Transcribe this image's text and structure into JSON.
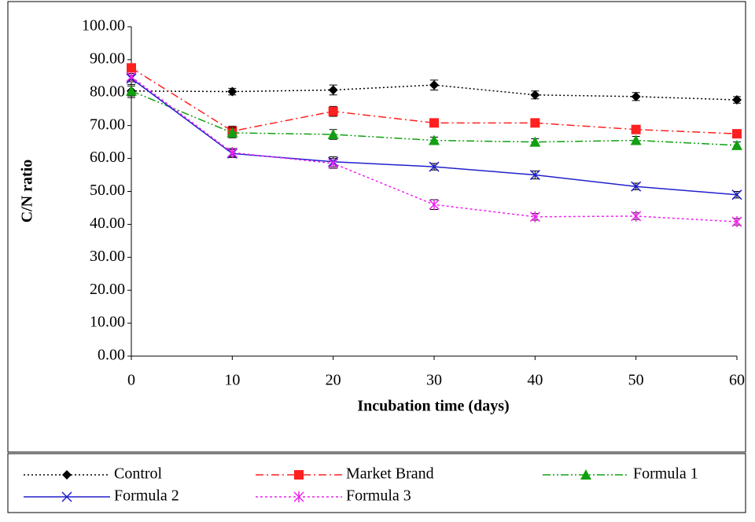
{
  "chart_data": {
    "type": "line",
    "xlabel": "Incubation time (days)",
    "ylabel": "C/N ratio",
    "x": [
      0,
      10,
      20,
      30,
      40,
      50,
      60
    ],
    "xlim": [
      0,
      60
    ],
    "xticks": [
      0,
      10,
      20,
      30,
      40,
      50,
      60
    ],
    "ylim": [
      0,
      100
    ],
    "yticks": [
      {
        "value": 0,
        "label": "0.00"
      },
      {
        "value": 10,
        "label": "10.00"
      },
      {
        "value": 20,
        "label": "20.00"
      },
      {
        "value": 30,
        "label": "30.00"
      },
      {
        "value": 40,
        "label": "40.00"
      },
      {
        "value": 50,
        "label": "50.00"
      },
      {
        "value": 60,
        "label": "60.00"
      },
      {
        "value": 70,
        "label": "70.00"
      },
      {
        "value": 80,
        "label": "80.00"
      },
      {
        "value": 90,
        "label": "90.00"
      },
      {
        "value": 100,
        "label": "100.00"
      }
    ],
    "legend": "bottom",
    "series": [
      {
        "name": "Control",
        "color": "#000000",
        "dash": "2,3",
        "marker": "diamond",
        "values": [
          80.5,
          80.3,
          80.8,
          82.3,
          79.3,
          78.8,
          77.8
        ],
        "errors": [
          1.5,
          1.0,
          1.5,
          1.5,
          1.2,
          1.2,
          1.0
        ]
      },
      {
        "name": "Market Brand",
        "color": "#ff2020",
        "dash": "10,4,2,4",
        "marker": "square",
        "values": [
          87.5,
          68.3,
          74.3,
          70.8,
          70.8,
          68.8,
          67.5
        ],
        "errors": [
          1.0,
          1.5,
          1.5,
          1.2,
          1.2,
          1.0,
          1.0
        ]
      },
      {
        "name": "Formula 1",
        "color": "#11a011",
        "dash": "10,3,2,3,2,3",
        "marker": "triangle",
        "values": [
          80.5,
          67.8,
          67.3,
          65.5,
          65.0,
          65.5,
          64.0
        ],
        "errors": [
          2.0,
          1.5,
          1.5,
          1.0,
          1.0,
          1.2,
          1.0
        ]
      },
      {
        "name": "Formula 2",
        "color": "#2020cc",
        "dash": "",
        "marker": "x",
        "values": [
          84.3,
          61.5,
          59.0,
          57.5,
          55.0,
          51.5,
          49.0
        ],
        "errors": [
          1.0,
          1.2,
          1.5,
          1.0,
          1.2,
          1.0,
          1.0
        ]
      },
      {
        "name": "Formula 3",
        "color": "#ee22ee",
        "dash": "3,3",
        "marker": "star",
        "values": [
          84.8,
          61.8,
          58.5,
          46.0,
          42.3,
          42.5,
          40.8
        ],
        "errors": [
          1.0,
          1.2,
          1.5,
          1.5,
          1.0,
          1.0,
          1.0
        ]
      }
    ]
  }
}
